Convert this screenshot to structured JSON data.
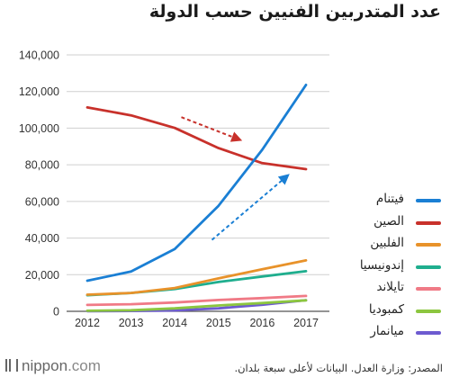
{
  "title": "عدد المتدربين الفنيين حسب الدولة",
  "footer": {
    "brand": "nippon",
    "brand_suffix": ".com",
    "source": "المصدر: وزارة العدل. البيانات لأعلى سبعة بلدان."
  },
  "chart_data": {
    "type": "line",
    "title": "عدد المتدربين الفنيين حسب الدولة",
    "xlabel": "",
    "ylabel": "",
    "x": [
      2012,
      2013,
      2014,
      2015,
      2016,
      2017
    ],
    "ylim": [
      0,
      140000
    ],
    "yticks": [
      0,
      20000,
      40000,
      60000,
      80000,
      100000,
      120000,
      140000
    ],
    "ytick_labels": [
      "0",
      "20,000",
      "40,000",
      "60,000",
      "80,000",
      "100,000",
      "120,000",
      "140,000"
    ],
    "grid": true,
    "legend_position": "right",
    "series": [
      {
        "name": "فيتنام",
        "color": "#1a7fd4",
        "values": [
          16700,
          21700,
          34000,
          57600,
          88200,
          123600
        ]
      },
      {
        "name": "الصين",
        "color": "#c8312b",
        "values": [
          111300,
          107000,
          100100,
          89100,
          80900,
          77600
        ]
      },
      {
        "name": "الفلبين",
        "color": "#e8922a",
        "values": [
          9100,
          10000,
          12700,
          18000,
          23000,
          27800
        ]
      },
      {
        "name": "إندونيسيا",
        "color": "#1fae8e",
        "values": [
          8800,
          10000,
          12200,
          16000,
          19000,
          21900
        ]
      },
      {
        "name": "تايلاند",
        "color": "#f07a86",
        "values": [
          3500,
          3900,
          4800,
          6200,
          7200,
          8400
        ]
      },
      {
        "name": "كمبوديا",
        "color": "#8cc63f",
        "values": [
          300,
          600,
          1600,
          3200,
          4500,
          6000
        ]
      },
      {
        "name": "ميانمار",
        "color": "#6d5bd0",
        "values": [
          100,
          200,
          500,
          1600,
          3600,
          6100
        ]
      }
    ],
    "annotations": [
      {
        "type": "dashed-arrow",
        "color": "#c8312b",
        "from": [
          2014.15,
          106000
        ],
        "to": [
          2015.45,
          94000
        ]
      },
      {
        "type": "dashed-arrow",
        "color": "#1a7fd4",
        "from": [
          2014.85,
          39000
        ],
        "to": [
          2016.55,
          73500
        ]
      }
    ]
  }
}
